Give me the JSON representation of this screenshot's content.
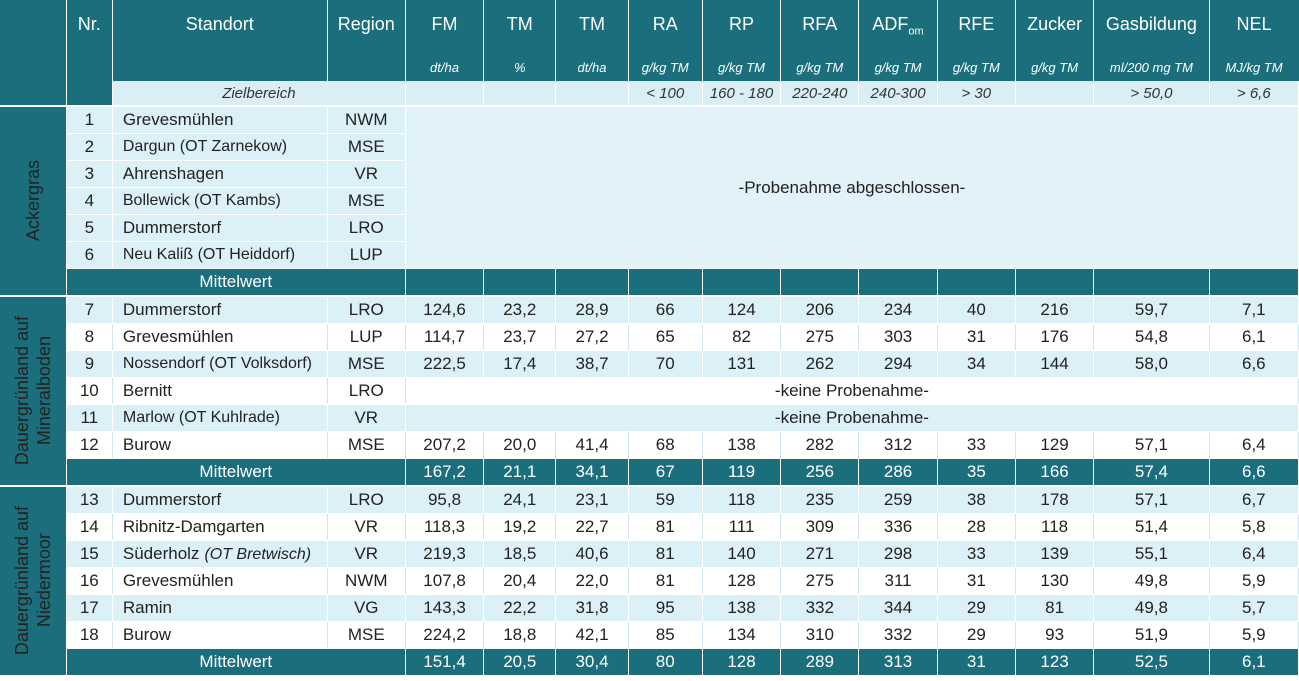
{
  "headers": [
    {
      "name": "Nr.",
      "unit": ""
    },
    {
      "name": "Standort",
      "unit": ""
    },
    {
      "name": "Region",
      "unit": ""
    },
    {
      "name": "FM",
      "unit": "dt/ha"
    },
    {
      "name": "TM",
      "unit": "%"
    },
    {
      "name": "TM",
      "unit": "dt/ha"
    },
    {
      "name": "RA",
      "unit": "g/kg TM"
    },
    {
      "name": "RP",
      "unit": "g/kg TM"
    },
    {
      "name": "RFA",
      "unit": "g/kg TM"
    },
    {
      "name": "ADF",
      "sub": "om",
      "unit": "g/kg TM"
    },
    {
      "name": "RFE",
      "unit": "g/kg TM"
    },
    {
      "name": "Zucker",
      "unit": "g/kg TM"
    },
    {
      "name": "Gasbildung",
      "unit": "ml/200 mg TM"
    },
    {
      "name": "NEL",
      "unit": "MJ/kg TM"
    }
  ],
  "zielbereich": {
    "label": "Zielbereich",
    "values": [
      "",
      "",
      "",
      "< 100",
      "160 - 180",
      "220-240",
      "240-300",
      "> 30",
      "",
      "> 50,0",
      "> 6,6"
    ]
  },
  "groups": {
    "ackergras": "Ackergras",
    "mineral_line1": "Dauergrünland auf",
    "mineral_line2": "Mineralboden",
    "moor_line1": "Dauergrünland auf",
    "moor_line2": "Niedermoor"
  },
  "ackergras_rows": [
    {
      "nr": "1",
      "standort": "Grevesmühlen",
      "region": "NWM"
    },
    {
      "nr": "2",
      "standort": "Dargun (OT Zarnekow)",
      "region": "MSE"
    },
    {
      "nr": "3",
      "standort": "Ahrenshagen",
      "region": "VR"
    },
    {
      "nr": "4",
      "standort": "Bollewick (OT Kambs)",
      "region": "MSE"
    },
    {
      "nr": "5",
      "standort": "Dummerstorf",
      "region": "LRO"
    },
    {
      "nr": "6",
      "standort": "Neu Kaliß (OT Heiddorf)",
      "region": "LUP"
    }
  ],
  "ackergras_message": "-Probenahme abgeschlossen-",
  "mittelwert_label": "Mittelwert",
  "mineral_rows": [
    {
      "nr": "7",
      "standort": "Dummerstorf",
      "region": "LRO",
      "values": [
        "124,6",
        "23,2",
        "28,9",
        "66",
        "124",
        "206",
        "234",
        "40",
        "216",
        "59,7",
        "7,1"
      ]
    },
    {
      "nr": "8",
      "standort": "Grevesmühlen",
      "region": "LUP",
      "values": [
        "114,7",
        "23,7",
        "27,2",
        "65",
        "82",
        "275",
        "303",
        "31",
        "176",
        "54,8",
        "6,1"
      ]
    },
    {
      "nr": "9",
      "standort": "Nossendorf (OT Volksdorf)",
      "region": "MSE",
      "values": [
        "222,5",
        "17,4",
        "38,7",
        "70",
        "131",
        "262",
        "294",
        "34",
        "144",
        "58,0",
        "6,6"
      ]
    },
    {
      "nr": "10",
      "standort": "Bernitt",
      "region": "LRO",
      "message": "-keine Probenahme-"
    },
    {
      "nr": "11",
      "standort": "Marlow (OT Kuhlrade)",
      "region": "VR",
      "message": "-keine Probenahme-"
    },
    {
      "nr": "12",
      "standort": "Burow",
      "region": "MSE",
      "values": [
        "207,2",
        "20,0",
        "41,4",
        "68",
        "138",
        "282",
        "312",
        "33",
        "129",
        "57,1",
        "6,4"
      ]
    }
  ],
  "mineral_mittel": [
    "167,2",
    "21,1",
    "34,1",
    "67",
    "119",
    "256",
    "286",
    "35",
    "166",
    "57,4",
    "6,6"
  ],
  "moor_rows": [
    {
      "nr": "13",
      "standort": "Dummerstorf",
      "region": "LRO",
      "values": [
        "95,8",
        "24,1",
        "23,1",
        "59",
        "118",
        "235",
        "259",
        "38",
        "178",
        "57,1",
        "6,7"
      ]
    },
    {
      "nr": "14",
      "standort": "Ribnitz-Damgarten",
      "region": "VR",
      "values": [
        "118,3",
        "19,2",
        "22,7",
        "81",
        "111",
        "309",
        "336",
        "28",
        "118",
        "51,4",
        "5,8"
      ]
    },
    {
      "nr": "15",
      "standort": "Süderholz",
      "standort_ot": "(OT Bretwisch)",
      "region": "VR",
      "values": [
        "219,3",
        "18,5",
        "40,6",
        "81",
        "140",
        "271",
        "298",
        "33",
        "139",
        "55,1",
        "6,4"
      ]
    },
    {
      "nr": "16",
      "standort": "Grevesmühlen",
      "region": "NWM",
      "values": [
        "107,8",
        "20,4",
        "22,0",
        "81",
        "128",
        "275",
        "311",
        "31",
        "130",
        "49,8",
        "5,9"
      ]
    },
    {
      "nr": "17",
      "standort": "Ramin",
      "region": "VG",
      "values": [
        "143,3",
        "22,2",
        "31,8",
        "95",
        "138",
        "332",
        "344",
        "29",
        "81",
        "49,8",
        "5,7"
      ]
    },
    {
      "nr": "18",
      "standort": "Burow",
      "region": "MSE",
      "values": [
        "224,2",
        "18,8",
        "42,1",
        "85",
        "134",
        "310",
        "332",
        "29",
        "93",
        "51,9",
        "5,9"
      ]
    }
  ],
  "moor_mittel": [
    "151,4",
    "20,5",
    "30,4",
    "80",
    "128",
    "289",
    "313",
    "31",
    "123",
    "52,5",
    "6,1"
  ],
  "colors": {
    "header_bg": "#1b6f7d",
    "light_row": "#dcf0f8",
    "white_row": "#ffffff"
  }
}
